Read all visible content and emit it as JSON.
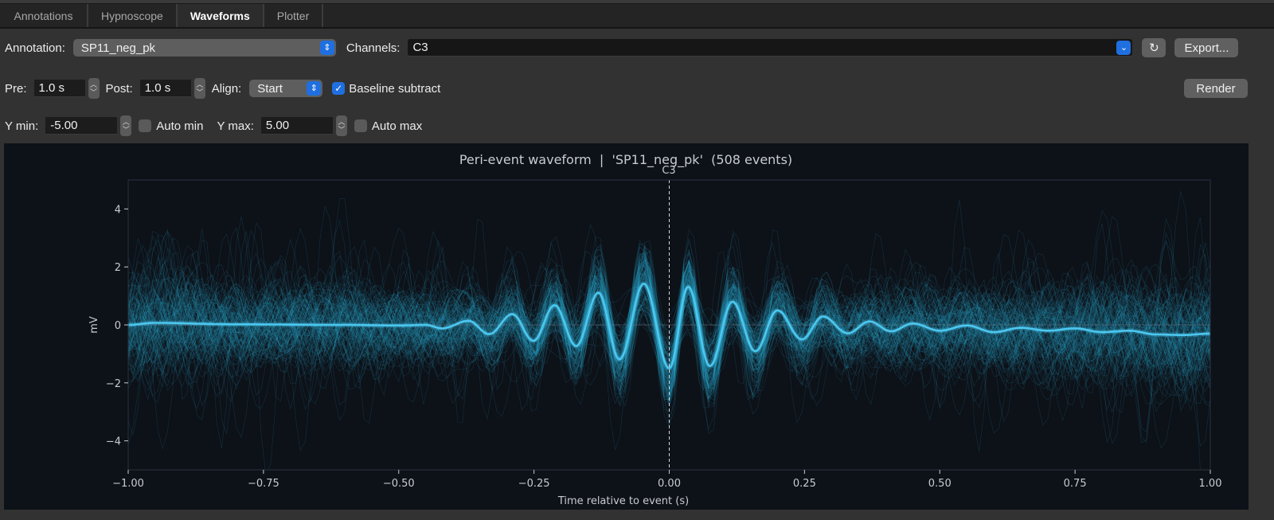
{
  "tabs": [
    {
      "label": "Annotations"
    },
    {
      "label": "Hypnoscope"
    },
    {
      "label": "Waveforms",
      "active": true
    },
    {
      "label": "Plotter"
    }
  ],
  "controls": {
    "annotation_label": "Annotation:",
    "annotation_value": "SP11_neg_pk",
    "channels_label": "Channels:",
    "channels_value": "C3",
    "refresh_icon": "refresh-icon",
    "export_label": "Export...",
    "pre_label": "Pre:",
    "pre_value": "1.0 s",
    "post_label": "Post:",
    "post_value": "1.0 s",
    "align_label": "Align:",
    "align_value": "Start",
    "baseline_label": "Baseline subtract",
    "baseline_checked": true,
    "render_label": "Render",
    "ymin_label": "Y min:",
    "ymin_value": "-5.00",
    "automin_label": "Auto min",
    "automin_checked": false,
    "ymax_label": "Y max:",
    "ymax_value": "5.00",
    "automax_label": "Auto max",
    "automax_checked": false
  },
  "chart_data": {
    "type": "line",
    "title": "Peri-event waveform  |  'SP11_neg_pk'  (508 events)",
    "subtitle": "C3",
    "xlabel": "Time relative to event (s)",
    "ylabel": "mV",
    "xlim": [
      -1.0,
      1.0
    ],
    "ylim": [
      -5,
      5
    ],
    "xticks": [
      "−1.00",
      "−0.75",
      "−0.50",
      "−0.25",
      "0.00",
      "0.25",
      "0.50",
      "0.75",
      "1.00"
    ],
    "xtick_values": [
      -1,
      -0.75,
      -0.5,
      -0.25,
      0,
      0.25,
      0.5,
      0.75,
      1
    ],
    "yticks": [
      "−4",
      "−2",
      "0",
      "2",
      "4"
    ],
    "ytick_values": [
      -4,
      -2,
      0,
      2,
      4
    ],
    "n_events": 508,
    "event_marker_x": 0,
    "colors": {
      "traces": "#2aa6cc",
      "mean": "#4cc8f0",
      "background": "#0d1118"
    },
    "mean_series": {
      "x": [
        -1.0,
        -0.95,
        -0.8,
        -0.6,
        -0.5,
        -0.45,
        -0.42,
        -0.371,
        -0.333,
        -0.29,
        -0.251,
        -0.212,
        -0.172,
        -0.131,
        -0.092,
        -0.047,
        0.0,
        0.035,
        0.075,
        0.117,
        0.159,
        0.2,
        0.245,
        0.284,
        0.33,
        0.37,
        0.41,
        0.45,
        0.5,
        0.55,
        0.6,
        0.65,
        0.7,
        0.75,
        0.8,
        0.85,
        0.9,
        0.95,
        1.0
      ],
      "y": [
        0.0,
        0.07,
        0.02,
        0.0,
        -0.02,
        0.0,
        -0.12,
        0.14,
        -0.32,
        0.37,
        -0.55,
        0.68,
        -0.73,
        1.11,
        -1.19,
        1.42,
        -1.5,
        1.32,
        -1.42,
        0.8,
        -0.91,
        0.5,
        -0.5,
        0.29,
        -0.29,
        0.12,
        -0.22,
        0.05,
        -0.2,
        -0.02,
        -0.25,
        -0.1,
        -0.2,
        -0.12,
        -0.25,
        -0.2,
        -0.33,
        -0.35,
        -0.3
      ]
    }
  }
}
